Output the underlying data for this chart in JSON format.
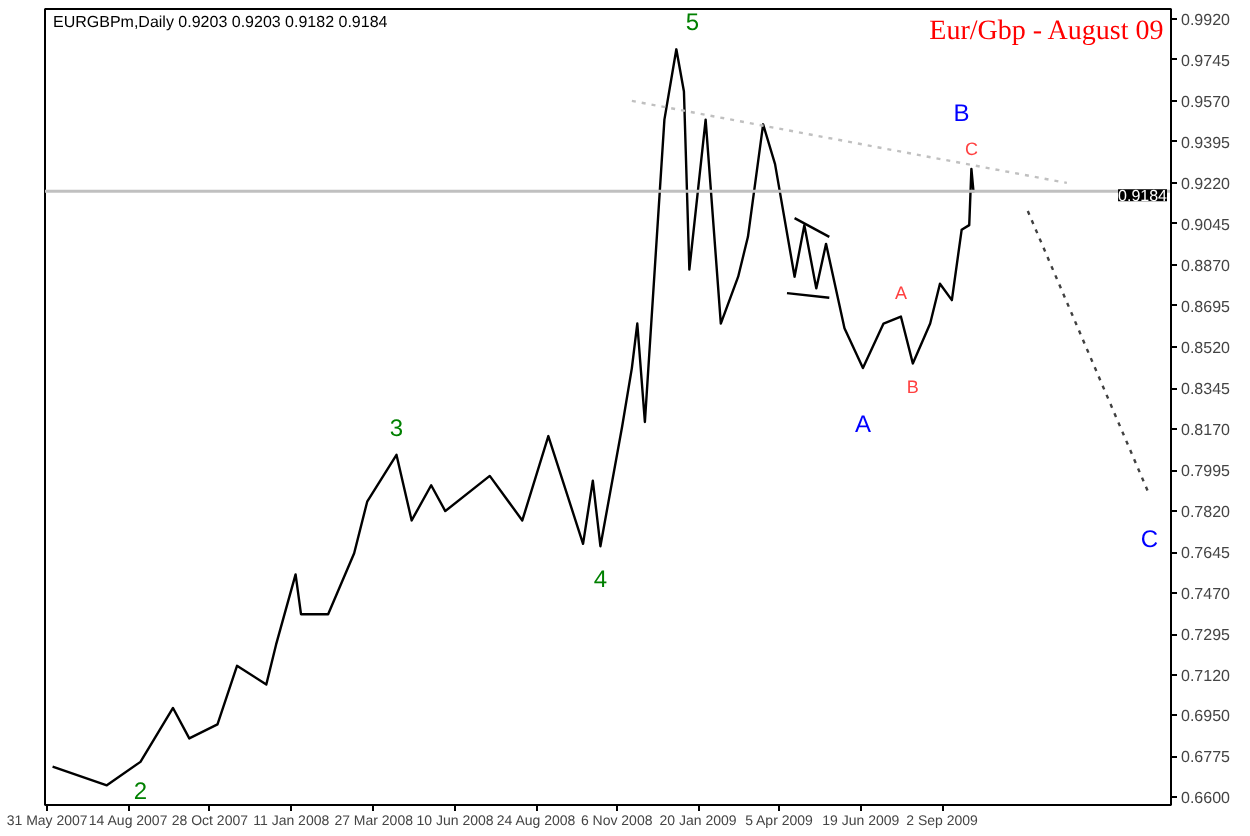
{
  "chart_data": {
    "type": "line",
    "title": "EURGBPm,Daily  0.9203 0.9203 0.9182 0.9184",
    "subtitle": "Eur/Gbp - August 09",
    "xlim": [
      "2007-05-29",
      "2010-04-01"
    ],
    "ylim": [
      0.6566,
      0.9962
    ],
    "xticks": [
      {
        "value": "2007-05-31",
        "label": "31 May 2007"
      },
      {
        "value": "2007-08-14",
        "label": "14 Aug 2007"
      },
      {
        "value": "2007-10-28",
        "label": "28 Oct 2007"
      },
      {
        "value": "2008-01-11",
        "label": "11 Jan 2008"
      },
      {
        "value": "2008-03-27",
        "label": "27 Mar 2008"
      },
      {
        "value": "2008-06-10",
        "label": "10 Jun 2008"
      },
      {
        "value": "2008-08-24",
        "label": "24 Aug 2008"
      },
      {
        "value": "2008-11-06",
        "label": "6 Nov 2008"
      },
      {
        "value": "2009-01-20",
        "label": "20 Jan 2009"
      },
      {
        "value": "2009-04-05",
        "label": "5 Apr 2009"
      },
      {
        "value": "2009-06-19",
        "label": "19 Jun 2009"
      },
      {
        "value": "2009-09-02",
        "label": "2 Sep 2009"
      }
    ],
    "yticks": [
      {
        "value": 0.66,
        "label": "0.6600"
      },
      {
        "value": 0.6775,
        "label": "0.6775"
      },
      {
        "value": 0.695,
        "label": "0.6950"
      },
      {
        "value": 0.712,
        "label": "0.7120"
      },
      {
        "value": 0.7295,
        "label": "0.7295"
      },
      {
        "value": 0.747,
        "label": "0.7470"
      },
      {
        "value": 0.7645,
        "label": "0.7645"
      },
      {
        "value": 0.782,
        "label": "0.7820"
      },
      {
        "value": 0.7995,
        "label": "0.7995"
      },
      {
        "value": 0.817,
        "label": "0.8170"
      },
      {
        "value": 0.8345,
        "label": "0.8345"
      },
      {
        "value": 0.852,
        "label": "0.8520"
      },
      {
        "value": 0.8695,
        "label": "0.8695"
      },
      {
        "value": 0.887,
        "label": "0.8870"
      },
      {
        "value": 0.9045,
        "label": "0.9045"
      },
      {
        "value": 0.922,
        "label": "0.9220"
      },
      {
        "value": 0.9395,
        "label": "0.9395"
      },
      {
        "value": 0.957,
        "label": "0.9570"
      },
      {
        "value": 0.9745,
        "label": "0.9745"
      },
      {
        "value": 0.992,
        "label": "0.9920"
      }
    ],
    "grid": false,
    "series": [
      {
        "color": "#000000",
        "line_style": "solid",
        "x": [
          "2007-06-05",
          "2007-07-25",
          "2007-08-25",
          "2007-09-24",
          "2007-10-09",
          "2007-11-04",
          "2007-11-22",
          "2007-12-19",
          "2007-12-28",
          "2008-01-15",
          "2008-01-20",
          "2008-02-14",
          "2008-03-09",
          "2008-03-21",
          "2008-04-17",
          "2008-05-01",
          "2008-05-19",
          "2008-06-01",
          "2008-07-12",
          "2008-08-11",
          "2008-09-04",
          "2008-10-06",
          "2008-10-15",
          "2008-10-22",
          "2008-11-11",
          "2008-11-20",
          "2008-11-25",
          "2008-12-02",
          "2008-12-20",
          "2008-12-31",
          "2009-01-07",
          "2009-01-12",
          "2009-01-27",
          "2009-02-10",
          "2009-02-26",
          "2009-03-07",
          "2009-03-21",
          "2009-04-01",
          "2009-04-19",
          "2009-04-28",
          "2009-05-09",
          "2009-05-18",
          "2009-06-04",
          "2009-06-21",
          "2009-07-10",
          "2009-07-26",
          "2009-08-06",
          "2009-08-22",
          "2009-08-31",
          "2009-09-11",
          "2009-09-20",
          "2009-09-27",
          "2009-09-29",
          "2009-10-01"
        ],
        "values": [
          0.673,
          0.665,
          0.675,
          0.698,
          0.685,
          0.691,
          0.716,
          0.708,
          0.725,
          0.755,
          0.738,
          0.738,
          0.764,
          0.786,
          0.806,
          0.778,
          0.793,
          0.782,
          0.797,
          0.778,
          0.814,
          0.768,
          0.795,
          0.767,
          0.818,
          0.843,
          0.862,
          0.82,
          0.949,
          0.979,
          0.961,
          0.885,
          0.949,
          0.862,
          0.882,
          0.899,
          0.947,
          0.93,
          0.882,
          0.904,
          0.877,
          0.896,
          0.86,
          0.843,
          0.862,
          0.865,
          0.845,
          0.862,
          0.879,
          0.872,
          0.902,
          0.904,
          0.928,
          0.918
        ]
      },
      {
        "color": "#c0c0c0",
        "line_style": "dotted",
        "x": [
          "2008-11-20",
          "2009-12-26"
        ],
        "values": [
          0.957,
          0.922
        ]
      },
      {
        "color": "#404040",
        "line_style": "dotted",
        "x": [
          "2009-11-20",
          "2010-03-12"
        ],
        "values": [
          0.91,
          0.789
        ]
      },
      {
        "color": "#000000",
        "line_style": "solid",
        "x": [
          "2009-04-19",
          "2009-05-21"
        ],
        "values": [
          0.907,
          0.899
        ]
      },
      {
        "color": "#000000",
        "line_style": "solid",
        "x": [
          "2009-04-12",
          "2009-05-21"
        ],
        "values": [
          0.875,
          0.873
        ]
      }
    ],
    "ref_lines": [
      {
        "axis": "y",
        "value": 0.9184,
        "label": "0.9184",
        "color": "#c0c0c0"
      }
    ],
    "annotations": [
      {
        "text": "2",
        "x": "2007-08-25",
        "y": 0.675
      },
      {
        "text": "3",
        "x": "2008-04-17",
        "y": 0.806
      },
      {
        "text": "4",
        "x": "2008-10-22",
        "y": 0.767
      },
      {
        "text": "5",
        "x": "2008-12-31",
        "y": 0.979
      },
      {
        "text": "A",
        "x": "2009-06-21",
        "y": 0.843
      },
      {
        "text": "B",
        "x": "2009-09-29",
        "y": 0.928
      },
      {
        "text": "C",
        "x": "2010-03-12",
        "y": 0.789
      },
      {
        "text": "A",
        "x": "2009-07-26",
        "y": 0.865
      },
      {
        "text": "B",
        "x": "2009-08-06",
        "y": 0.845
      },
      {
        "text": "C",
        "x": "2009-09-29",
        "y": 0.928
      }
    ]
  }
}
